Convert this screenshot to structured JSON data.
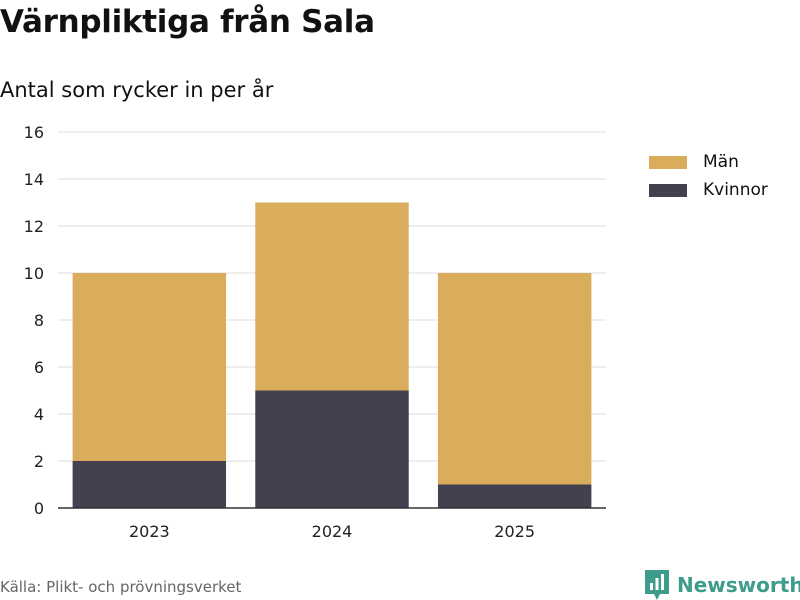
{
  "chart_data": {
    "type": "bar",
    "stacked": true,
    "title": "Värnpliktiga från Sala",
    "subtitle": "Antal som rycker in per år",
    "categories": [
      "2023",
      "2024",
      "2025"
    ],
    "series": [
      {
        "name": "Kvinnor",
        "values": [
          2,
          5,
          1
        ],
        "color": "#43404f"
      },
      {
        "name": "Män",
        "values": [
          8,
          8,
          9
        ],
        "color": "#d9ad5b"
      }
    ],
    "legend_order": [
      "Män",
      "Kvinnor"
    ],
    "ylim": [
      0,
      16
    ],
    "yticks": [
      0,
      2,
      4,
      6,
      8,
      10,
      12,
      14,
      16
    ],
    "grid": true,
    "legend_position": "right",
    "xlabel": "",
    "ylabel": ""
  },
  "source": "Källa: Plikt- och prövningsverket",
  "brand": {
    "name": "Newsworthy",
    "color": "#3d9c8c"
  }
}
